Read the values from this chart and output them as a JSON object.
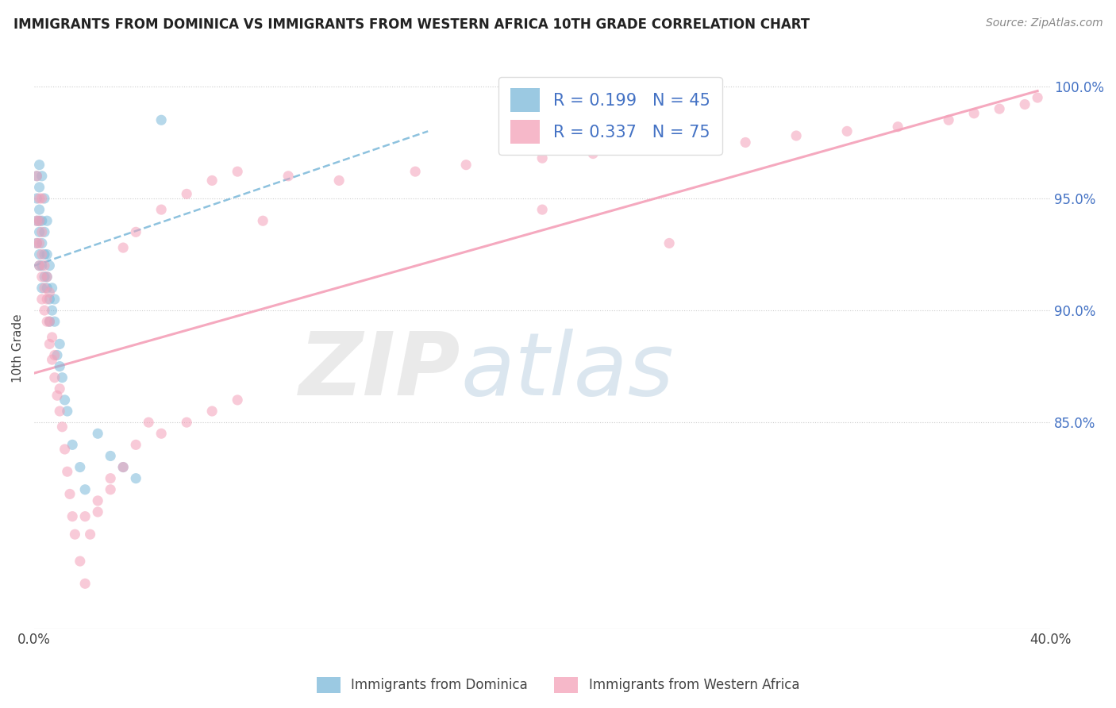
{
  "title": "IMMIGRANTS FROM DOMINICA VS IMMIGRANTS FROM WESTERN AFRICA 10TH GRADE CORRELATION CHART",
  "source_text": "Source: ZipAtlas.com",
  "ylabel": "10th Grade",
  "x_min": 0.0,
  "x_max": 0.4,
  "y_min": 0.758,
  "y_max": 1.008,
  "y_ticks": [
    0.85,
    0.9,
    0.95,
    1.0
  ],
  "y_tick_labels": [
    "85.0%",
    "90.0%",
    "95.0%",
    "100.0%"
  ],
  "blue_color": "#7ab8d9",
  "pink_color": "#f4a0b8",
  "title_fontsize": 12,
  "blue_scatter_x": [
    0.001,
    0.001,
    0.001,
    0.001,
    0.002,
    0.002,
    0.002,
    0.002,
    0.002,
    0.002,
    0.002,
    0.003,
    0.003,
    0.003,
    0.003,
    0.003,
    0.004,
    0.004,
    0.004,
    0.004,
    0.005,
    0.005,
    0.005,
    0.005,
    0.006,
    0.006,
    0.006,
    0.007,
    0.007,
    0.008,
    0.008,
    0.009,
    0.01,
    0.01,
    0.011,
    0.012,
    0.013,
    0.015,
    0.018,
    0.02,
    0.025,
    0.03,
    0.035,
    0.04,
    0.05
  ],
  "blue_scatter_y": [
    0.93,
    0.94,
    0.95,
    0.96,
    0.92,
    0.925,
    0.935,
    0.94,
    0.945,
    0.955,
    0.965,
    0.91,
    0.92,
    0.93,
    0.94,
    0.96,
    0.915,
    0.925,
    0.935,
    0.95,
    0.91,
    0.915,
    0.925,
    0.94,
    0.895,
    0.905,
    0.92,
    0.9,
    0.91,
    0.895,
    0.905,
    0.88,
    0.875,
    0.885,
    0.87,
    0.86,
    0.855,
    0.84,
    0.83,
    0.82,
    0.845,
    0.835,
    0.83,
    0.825,
    0.985
  ],
  "pink_scatter_x": [
    0.001,
    0.001,
    0.001,
    0.002,
    0.002,
    0.002,
    0.002,
    0.003,
    0.003,
    0.003,
    0.003,
    0.003,
    0.004,
    0.004,
    0.004,
    0.005,
    0.005,
    0.005,
    0.006,
    0.006,
    0.006,
    0.007,
    0.007,
    0.008,
    0.008,
    0.009,
    0.01,
    0.01,
    0.011,
    0.012,
    0.013,
    0.014,
    0.015,
    0.016,
    0.018,
    0.02,
    0.022,
    0.025,
    0.03,
    0.035,
    0.04,
    0.045,
    0.05,
    0.06,
    0.07,
    0.08,
    0.09,
    0.1,
    0.12,
    0.15,
    0.17,
    0.2,
    0.22,
    0.24,
    0.26,
    0.28,
    0.3,
    0.32,
    0.34,
    0.36,
    0.37,
    0.38,
    0.39,
    0.395,
    0.035,
    0.04,
    0.05,
    0.06,
    0.07,
    0.08,
    0.25,
    0.2,
    0.02,
    0.025,
    0.03
  ],
  "pink_scatter_y": [
    0.93,
    0.94,
    0.96,
    0.92,
    0.93,
    0.94,
    0.95,
    0.905,
    0.915,
    0.925,
    0.935,
    0.95,
    0.9,
    0.91,
    0.92,
    0.895,
    0.905,
    0.915,
    0.885,
    0.895,
    0.908,
    0.878,
    0.888,
    0.87,
    0.88,
    0.862,
    0.855,
    0.865,
    0.848,
    0.838,
    0.828,
    0.818,
    0.808,
    0.8,
    0.788,
    0.778,
    0.8,
    0.81,
    0.82,
    0.83,
    0.84,
    0.85,
    0.845,
    0.85,
    0.855,
    0.86,
    0.94,
    0.96,
    0.958,
    0.962,
    0.965,
    0.968,
    0.97,
    0.972,
    0.974,
    0.975,
    0.978,
    0.98,
    0.982,
    0.985,
    0.988,
    0.99,
    0.992,
    0.995,
    0.928,
    0.935,
    0.945,
    0.952,
    0.958,
    0.962,
    0.93,
    0.945,
    0.808,
    0.815,
    0.825
  ],
  "blue_trend_x": [
    0.0,
    0.155
  ],
  "blue_trend_y": [
    0.92,
    0.98
  ],
  "pink_trend_x": [
    0.0,
    0.395
  ],
  "pink_trend_y": [
    0.872,
    0.998
  ]
}
